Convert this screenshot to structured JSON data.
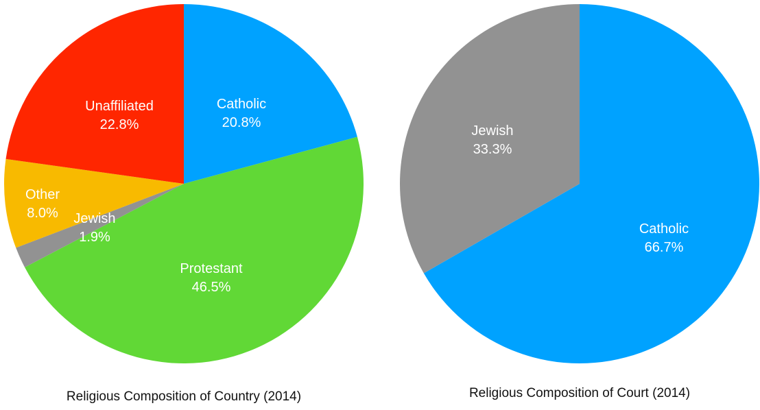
{
  "chart_data": [
    {
      "type": "pie",
      "caption": "Religious Composition of Country (2014)",
      "slices": [
        {
          "label": "Catholic",
          "value": 20.8,
          "display": "20.8%",
          "color": "#00A2FF"
        },
        {
          "label": "Protestant",
          "value": 46.5,
          "display": "46.5%",
          "color": "#61D836"
        },
        {
          "label": "Jewish",
          "value": 1.9,
          "display": "1.9%",
          "color": "#929292"
        },
        {
          "label": "Other",
          "value": 8.0,
          "display": "8.0%",
          "color": "#F8BA00"
        },
        {
          "label": "Unaffiliated",
          "value": 22.8,
          "display": "22.8%",
          "color": "#FF2600"
        }
      ]
    },
    {
      "type": "pie",
      "caption": "Religious Composition of Court (2014)",
      "slices": [
        {
          "label": "Catholic",
          "value": 66.7,
          "display": "66.7%",
          "color": "#00A2FF"
        },
        {
          "label": "Jewish",
          "value": 33.3,
          "display": "33.3%",
          "color": "#929292"
        }
      ]
    }
  ]
}
